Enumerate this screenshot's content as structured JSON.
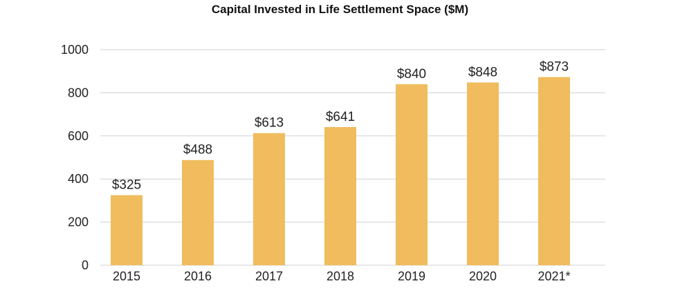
{
  "chart_data": {
    "type": "bar",
    "title": "Capital Invested in Life Settlement Space ($M)",
    "categories": [
      "2015",
      "2016",
      "2017",
      "2018",
      "2019",
      "2020",
      "2021*"
    ],
    "values": [
      325,
      488,
      613,
      641,
      840,
      848,
      873
    ],
    "data_labels": [
      "$325",
      "$488",
      "$613",
      "$641",
      "$840",
      "$848",
      "$873"
    ],
    "y_ticks": [
      "0",
      "200",
      "400",
      "600",
      "800",
      "1000"
    ],
    "y_tick_values": [
      0,
      200,
      400,
      600,
      800,
      1000
    ],
    "ylim": [
      0,
      1000
    ],
    "grid": true,
    "bar_color": "#F0BC5E",
    "grid_color": "#D0D0D0"
  }
}
